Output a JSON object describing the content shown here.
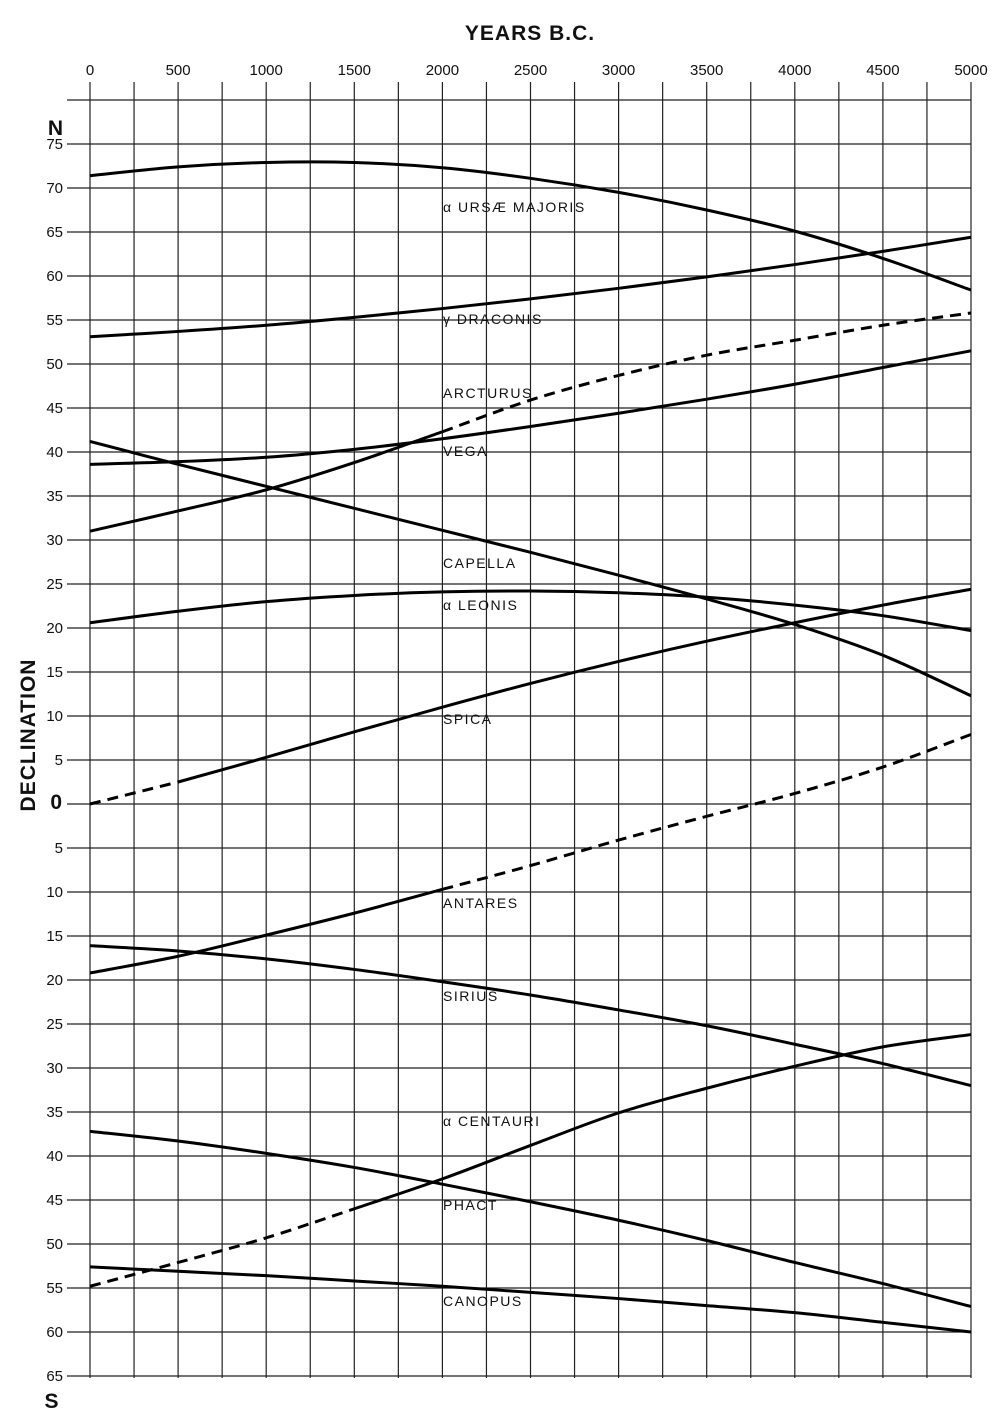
{
  "chart_data": {
    "type": "line",
    "title": "",
    "xlabel": "YEARS B.C.",
    "ylabel": "DECLINATION",
    "north_label": "N",
    "south_label": "S",
    "xlim": [
      0,
      5000
    ],
    "ylim": [
      -65,
      80
    ],
    "grid": true,
    "x_tick_values": [
      0,
      500,
      1000,
      1500,
      2000,
      2500,
      3000,
      3500,
      4000,
      4500,
      5000
    ],
    "x_tick_labels": [
      "0",
      "500",
      "1000",
      "1500",
      "2000",
      "2500",
      "3000",
      "3500",
      "4000",
      "4500",
      "5000"
    ],
    "y_tick_values": [
      75,
      70,
      65,
      60,
      55,
      50,
      45,
      40,
      35,
      30,
      25,
      20,
      15,
      10,
      5,
      0,
      -5,
      -10,
      -15,
      -20,
      -25,
      -30,
      -35,
      -40,
      -45,
      -50,
      -55,
      -60,
      -65
    ],
    "y_tick_labels": [
      "75",
      "70",
      "65",
      "60",
      "55",
      "50",
      "45",
      "40",
      "35",
      "30",
      "25",
      "20",
      "15",
      "10",
      "5",
      "0",
      "5",
      "10",
      "15",
      "20",
      "25",
      "30",
      "35",
      "40",
      "45",
      "50",
      "55",
      "60",
      "65"
    ],
    "x": [
      0,
      500,
      1000,
      1500,
      2000,
      2500,
      3000,
      3500,
      4000,
      4500,
      5000
    ],
    "series": [
      {
        "name": "α URSÆ MAJORIS",
        "values": [
          71.4,
          72.4,
          72.9,
          72.9,
          72.3,
          71.1,
          69.5,
          67.5,
          65.1,
          62.0,
          58.4
        ]
      },
      {
        "name": "γ DRACONIS",
        "values": [
          53.1,
          53.7,
          54.4,
          55.3,
          56.3,
          57.4,
          58.6,
          59.9,
          61.3,
          62.8,
          64.4
        ]
      },
      {
        "name": "ARCTURUS",
        "values": [
          31.0,
          33.3,
          35.7,
          38.8,
          42.3,
          45.9,
          48.7,
          51.0,
          52.7,
          54.4,
          55.8
        ],
        "dashed_range": [
          2000,
          5000
        ]
      },
      {
        "name": "VEGA",
        "values": [
          38.6,
          38.9,
          39.4,
          40.3,
          41.5,
          42.9,
          44.4,
          46.0,
          47.7,
          49.6,
          51.5
        ]
      },
      {
        "name": "CAPELLA",
        "values": [
          41.2,
          38.6,
          36.1,
          33.6,
          31.1,
          28.6,
          26.0,
          23.3,
          20.4,
          16.9,
          12.3
        ]
      },
      {
        "name": "α LEONIS",
        "values": [
          20.6,
          21.9,
          23.0,
          23.7,
          24.1,
          24.2,
          24.0,
          23.5,
          22.6,
          21.4,
          19.7
        ]
      },
      {
        "name": "SPICA",
        "values": [
          0.0,
          2.5,
          5.3,
          8.2,
          11.0,
          13.7,
          16.2,
          18.5,
          20.6,
          22.6,
          24.4
        ],
        "dashed_range": [
          0,
          500
        ]
      },
      {
        "name": "ANTARES",
        "values": [
          -19.2,
          -17.3,
          -14.9,
          -12.4,
          -9.7,
          -7.0,
          -4.1,
          -1.4,
          1.2,
          4.2,
          7.9
        ],
        "dashed_range": [
          2000,
          5000
        ]
      },
      {
        "name": "SIRIUS",
        "values": [
          -16.1,
          -16.7,
          -17.6,
          -18.8,
          -20.2,
          -21.7,
          -23.4,
          -25.2,
          -27.3,
          -29.5,
          -32.0
        ]
      },
      {
        "name": "α CENTAURI",
        "values": [
          -54.8,
          -52.1,
          -49.3,
          -46.0,
          -42.6,
          -38.8,
          -35.1,
          -32.3,
          -29.8,
          -27.6,
          -26.2
        ],
        "dashed_range": [
          0,
          1500
        ]
      },
      {
        "name": "PHACT",
        "values": [
          -37.2,
          -38.3,
          -39.7,
          -41.3,
          -43.2,
          -45.2,
          -47.3,
          -49.6,
          -52.1,
          -54.5,
          -57.1
        ]
      },
      {
        "name": "CANOPUS",
        "values": [
          -52.6,
          -53.1,
          -53.6,
          -54.2,
          -54.8,
          -55.5,
          -56.2,
          -57.0,
          -57.8,
          -58.9,
          -60.0
        ]
      }
    ]
  }
}
